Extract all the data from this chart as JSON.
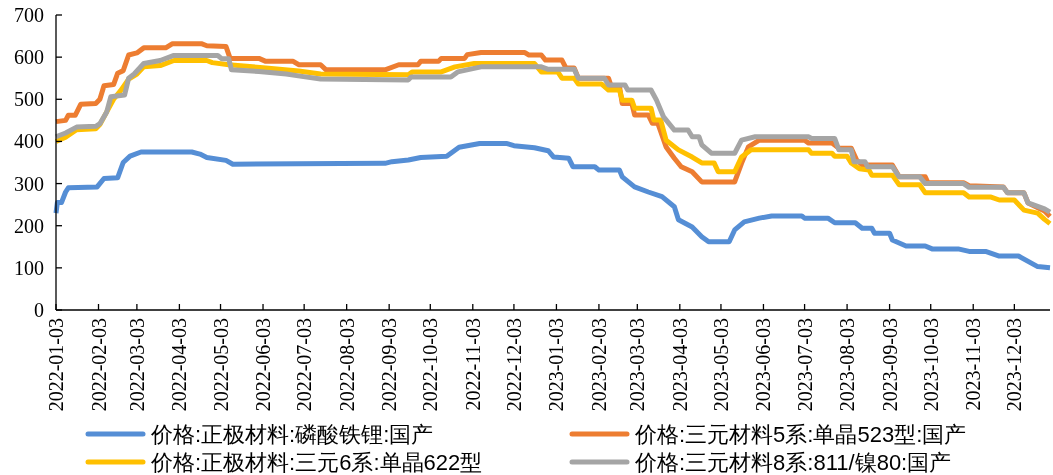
{
  "chart_data": {
    "type": "line",
    "legend": "bottom",
    "xlim": [
      "2022-01-03",
      "2023-12-29"
    ],
    "ylim": [
      0,
      700
    ],
    "yticks": [
      0,
      100,
      200,
      300,
      400,
      500,
      600,
      700
    ],
    "xticks": [
      "2022-01-03",
      "2022-02-03",
      "2022-03-03",
      "2022-04-03",
      "2022-05-03",
      "2022-06-03",
      "2022-07-03",
      "2022-08-03",
      "2022-09-03",
      "2022-10-03",
      "2022-11-03",
      "2022-12-03",
      "2023-01-03",
      "2023-02-03",
      "2023-03-03",
      "2023-04-03",
      "2023-05-03",
      "2023-06-03",
      "2023-07-03",
      "2023-08-03",
      "2023-09-03",
      "2023-10-03",
      "2023-11-03",
      "2023-12-03"
    ],
    "series": [
      {
        "name": "价格:正极材料:磷酸铁锂:国产",
        "color": "#558ed5",
        "x": [
          "2022-01-03",
          "2022-01-04",
          "2022-01-07",
          "2022-01-10",
          "2022-01-12",
          "2022-02-02",
          "2022-02-07",
          "2022-02-17",
          "2022-02-21",
          "2022-02-26",
          "2022-03-06",
          "2022-04-12",
          "2022-04-18",
          "2022-04-23",
          "2022-05-07",
          "2022-05-12",
          "2022-08-31",
          "2022-09-05",
          "2022-09-17",
          "2022-09-26",
          "2022-10-15",
          "2022-10-24",
          "2022-11-08",
          "2022-11-28",
          "2022-12-03",
          "2022-12-18",
          "2022-12-28",
          "2023-01-01",
          "2023-01-12",
          "2023-01-15",
          "2023-01-31",
          "2023-02-03",
          "2023-02-18",
          "2023-02-20",
          "2023-03-01",
          "2023-03-11",
          "2023-03-21",
          "2023-03-30",
          "2023-04-02",
          "2023-04-12",
          "2023-04-19",
          "2023-04-24",
          "2023-05-09",
          "2023-05-13",
          "2023-05-20",
          "2023-05-31",
          "2023-06-09",
          "2023-07-01",
          "2023-07-03",
          "2023-07-20",
          "2023-07-25",
          "2023-08-09",
          "2023-08-14",
          "2023-08-21",
          "2023-08-23",
          "2023-09-03",
          "2023-09-05",
          "2023-09-15",
          "2023-09-29",
          "2023-10-04",
          "2023-10-23",
          "2023-10-31",
          "2023-11-12",
          "2023-11-22",
          "2023-12-06",
          "2023-12-20",
          "2023-12-29"
        ],
        "values": [
          230,
          255,
          255,
          280,
          290,
          292,
          312,
          314,
          350,
          365,
          375,
          375,
          370,
          362,
          355,
          346,
          348,
          352,
          356,
          362,
          365,
          386,
          395,
          395,
          390,
          385,
          378,
          363,
          360,
          340,
          340,
          332,
          332,
          316,
          292,
          280,
          269,
          245,
          214,
          197,
          174,
          162,
          162,
          190,
          209,
          218,
          223,
          223,
          218,
          218,
          207,
          207,
          194,
          194,
          182,
          182,
          166,
          152,
          152,
          145,
          145,
          139,
          139,
          128,
          128,
          103,
          100
        ]
      },
      {
        "name": "价格:三元材料5系:单晶523型:国产",
        "color": "#ed7d31",
        "x": [
          "2022-01-03",
          "2022-01-10",
          "2022-01-12",
          "2022-01-17",
          "2022-01-21",
          "2022-02-01",
          "2022-02-04",
          "2022-02-07",
          "2022-02-14",
          "2022-02-17",
          "2022-02-21",
          "2022-02-25",
          "2022-03-03",
          "2022-03-08",
          "2022-03-24",
          "2022-03-29",
          "2022-04-19",
          "2022-04-23",
          "2022-05-07",
          "2022-05-10",
          "2022-05-31",
          "2022-06-05",
          "2022-06-25",
          "2022-06-29",
          "2022-07-15",
          "2022-07-19",
          "2022-08-31",
          "2022-09-10",
          "2022-09-24",
          "2022-09-26",
          "2022-10-09",
          "2022-10-11",
          "2022-10-28",
          "2022-10-30",
          "2022-11-09",
          "2022-12-11",
          "2022-12-14",
          "2022-12-23",
          "2022-12-26",
          "2023-01-07",
          "2023-01-10",
          "2023-01-16",
          "2023-01-19",
          "2023-02-10",
          "2023-02-12",
          "2023-02-18",
          "2023-02-20",
          "2023-02-27",
          "2023-03-01",
          "2023-03-11",
          "2023-03-14",
          "2023-03-18",
          "2023-03-24",
          "2023-03-30",
          "2023-04-04",
          "2023-04-12",
          "2023-04-19",
          "2023-05-13",
          "2023-05-18",
          "2023-05-23",
          "2023-05-31",
          "2023-07-03",
          "2023-07-06",
          "2023-07-23",
          "2023-07-28",
          "2023-08-06",
          "2023-08-10",
          "2023-08-14",
          "2023-09-05",
          "2023-09-10",
          "2023-09-29",
          "2023-10-01",
          "2023-10-27",
          "2023-10-31",
          "2023-11-25",
          "2023-11-28",
          "2023-12-10",
          "2023-12-13",
          "2023-12-25",
          "2023-12-29"
        ],
        "values": [
          447,
          450,
          462,
          462,
          488,
          490,
          500,
          532,
          535,
          562,
          568,
          605,
          610,
          622,
          622,
          632,
          632,
          627,
          625,
          597,
          597,
          590,
          590,
          582,
          582,
          570,
          570,
          582,
          582,
          590,
          590,
          597,
          597,
          606,
          611,
          611,
          605,
          605,
          593,
          593,
          574,
          574,
          550,
          550,
          530,
          530,
          490,
          490,
          463,
          463,
          443,
          443,
          387,
          360,
          340,
          328,
          304,
          304,
          348,
          387,
          403,
          403,
          396,
          396,
          384,
          384,
          356,
          344,
          344,
          316,
          316,
          302,
          302,
          295,
          292,
          278,
          278,
          254,
          235,
          222
        ]
      },
      {
        "name": "价格:正极材料:三元6系:单晶622型",
        "color": "#ffc000",
        "x": [
          "2022-01-03",
          "2022-01-10",
          "2022-01-18",
          "2022-02-01",
          "2022-02-04",
          "2022-02-09",
          "2022-02-14",
          "2022-02-19",
          "2022-02-25",
          "2022-03-03",
          "2022-03-08",
          "2022-03-20",
          "2022-03-30",
          "2022-04-23",
          "2022-04-27",
          "2022-05-09",
          "2022-06-03",
          "2022-06-29",
          "2022-07-15",
          "2022-09-17",
          "2022-09-20",
          "2022-10-11",
          "2022-10-21",
          "2022-11-04",
          "2022-12-18",
          "2022-12-23",
          "2023-01-04",
          "2023-01-07",
          "2023-01-16",
          "2023-01-19",
          "2023-02-05",
          "2023-02-10",
          "2023-02-18",
          "2023-02-20",
          "2023-02-27",
          "2023-03-01",
          "2023-03-13",
          "2023-03-15",
          "2023-03-20",
          "2023-03-24",
          "2023-04-02",
          "2023-04-12",
          "2023-04-19",
          "2023-04-28",
          "2023-05-01",
          "2023-05-13",
          "2023-05-18",
          "2023-05-25",
          "2023-07-06",
          "2023-07-08",
          "2023-07-23",
          "2023-07-25",
          "2023-08-03",
          "2023-08-06",
          "2023-08-12",
          "2023-08-19",
          "2023-08-21",
          "2023-09-05",
          "2023-09-10",
          "2023-09-25",
          "2023-09-29",
          "2023-10-27",
          "2023-10-31",
          "2023-11-16",
          "2023-11-22",
          "2023-12-03",
          "2023-12-10",
          "2023-12-20",
          "2023-12-25",
          "2023-12-29"
        ],
        "values": [
          400,
          410,
          428,
          430,
          440,
          470,
          500,
          520,
          548,
          560,
          577,
          580,
          592,
          592,
          587,
          582,
          575,
          567,
          560,
          558,
          565,
          565,
          577,
          585,
          585,
          565,
          565,
          550,
          550,
          536,
          536,
          522,
          522,
          498,
          498,
          479,
          479,
          451,
          451,
          403,
          380,
          363,
          349,
          349,
          328,
          328,
          363,
          380,
          380,
          372,
          372,
          365,
          365,
          349,
          335,
          332,
          320,
          320,
          297,
          297,
          278,
          278,
          268,
          268,
          261,
          261,
          237,
          230,
          215,
          205
        ]
      },
      {
        "name": "价格:三元材料8系:811/镍80:国产",
        "color": "#a5a5a5",
        "x": [
          "2022-01-03",
          "2022-01-10",
          "2022-01-18",
          "2022-02-01",
          "2022-02-04",
          "2022-02-09",
          "2022-02-12",
          "2022-02-22",
          "2022-02-25",
          "2022-03-01",
          "2022-03-08",
          "2022-03-20",
          "2022-03-30",
          "2022-05-01",
          "2022-05-04",
          "2022-05-09",
          "2022-05-11",
          "2022-05-31",
          "2022-06-20",
          "2022-06-30",
          "2022-07-15",
          "2022-09-17",
          "2022-09-19",
          "2022-10-18",
          "2022-10-23",
          "2022-11-09",
          "2022-12-23",
          "2022-12-28",
          "2023-01-16",
          "2023-01-19",
          "2023-02-07",
          "2023-02-10",
          "2023-02-22",
          "2023-02-24",
          "2023-03-13",
          "2023-03-17",
          "2023-03-22",
          "2023-03-30",
          "2023-04-09",
          "2023-04-12",
          "2023-04-17",
          "2023-04-19",
          "2023-04-26",
          "2023-05-13",
          "2023-05-18",
          "2023-05-28",
          "2023-07-06",
          "2023-07-08",
          "2023-07-25",
          "2023-07-28",
          "2023-08-06",
          "2023-08-08",
          "2023-08-16",
          "2023-08-18",
          "2023-09-05",
          "2023-09-10",
          "2023-09-25",
          "2023-09-29",
          "2023-10-27",
          "2023-10-31",
          "2023-11-25",
          "2023-11-28",
          "2023-12-10",
          "2023-12-13",
          "2023-12-25",
          "2023-12-29"
        ],
        "values": [
          411,
          420,
          434,
          436,
          442,
          470,
          506,
          510,
          550,
          560,
          585,
          592,
          604,
          604,
          596,
          596,
          570,
          566,
          560,
          555,
          548,
          546,
          553,
          553,
          565,
          577,
          577,
          571,
          571,
          550,
          550,
          534,
          534,
          522,
          522,
          498,
          459,
          427,
          427,
          411,
          411,
          392,
          372,
          372,
          403,
          411,
          411,
          407,
          407,
          380,
          380,
          352,
          352,
          340,
          340,
          316,
          316,
          300,
          300,
          291,
          291,
          278,
          278,
          254,
          240,
          232
        ]
      }
    ]
  }
}
